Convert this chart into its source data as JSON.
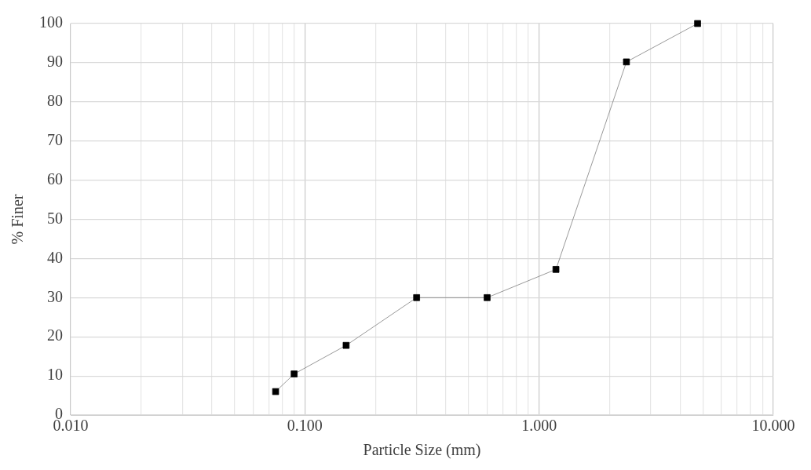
{
  "chart_data": {
    "type": "line",
    "xlabel": "Particle Size (mm)",
    "ylabel": "% Finer",
    "x": [
      0.075,
      0.09,
      0.15,
      0.3,
      0.6,
      1.18,
      2.36,
      4.75
    ],
    "series": [
      {
        "color": "#000000",
        "values": [
          6,
          10.5,
          17.8,
          30,
          30,
          37.2,
          90.2,
          100
        ]
      }
    ],
    "log": "x",
    "xlim": [
      0.01,
      10
    ],
    "xticks": [
      {
        "value": 0.01,
        "label": "0.010"
      },
      {
        "value": 0.02,
        "label": null
      },
      {
        "value": 0.03,
        "label": null
      },
      {
        "value": 0.04,
        "label": null
      },
      {
        "value": 0.05,
        "label": null
      },
      {
        "value": 0.06,
        "label": null
      },
      {
        "value": 0.07,
        "label": null
      },
      {
        "value": 0.08,
        "label": null
      },
      {
        "value": 0.09,
        "label": null
      },
      {
        "value": 0.1,
        "label": "0.100"
      },
      {
        "value": 0.2,
        "label": null
      },
      {
        "value": 0.3,
        "label": null
      },
      {
        "value": 0.4,
        "label": null
      },
      {
        "value": 0.5,
        "label": null
      },
      {
        "value": 0.6,
        "label": null
      },
      {
        "value": 0.7,
        "label": null
      },
      {
        "value": 0.8,
        "label": null
      },
      {
        "value": 0.9,
        "label": null
      },
      {
        "value": 1,
        "label": "1.000"
      },
      {
        "value": 2,
        "label": null
      },
      {
        "value": 3,
        "label": null
      },
      {
        "value": 4,
        "label": null
      },
      {
        "value": 5,
        "label": null
      },
      {
        "value": 6,
        "label": null
      },
      {
        "value": 7,
        "label": null
      },
      {
        "value": 8,
        "label": null
      },
      {
        "value": 9,
        "label": null
      },
      {
        "value": 10,
        "label": "10.000"
      }
    ],
    "ylim": [
      0,
      100
    ],
    "yticks": [
      0,
      10,
      20,
      30,
      40,
      50,
      60,
      70,
      80,
      90,
      100
    ],
    "grid": true,
    "marker": "square",
    "line_style": "solid"
  }
}
